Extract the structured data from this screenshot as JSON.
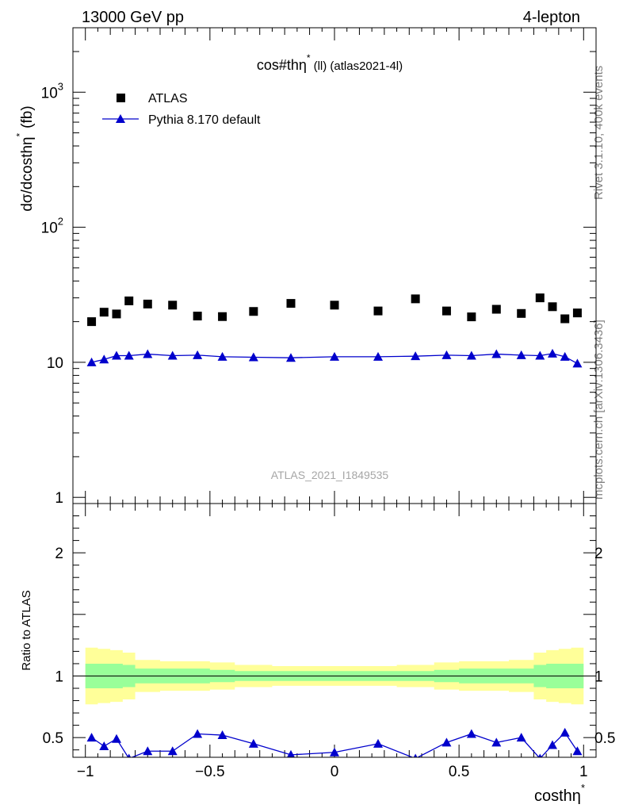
{
  "header": {
    "left": "13000 GeV pp",
    "right": "4-lepton"
  },
  "side_labels": {
    "rivet": "Rivet 3.1.10,  400k events",
    "mcplots": "mcplots.cern.ch [arXiv:1306.3436]"
  },
  "watermark": "ATLAS_2021_I1849535",
  "colors": {
    "data": "#000000",
    "mc": "#0000cc",
    "band_outer": "#ffff99",
    "band_inner": "#99ff99"
  },
  "chart_data": [
    {
      "type": "scatter",
      "title": "cos#thη* (ll) (atlas2021-4l)",
      "title_main": "cos#thη",
      "title_sup": "*",
      "title_suffix": "(ll) (atlas2021-4l)",
      "ylabel": "dσ/dcosthη* (fb)",
      "ylabel_main": "dσ/dcosthη",
      "ylabel_sup": "*",
      "ylabel_suffix": "(fb)",
      "yscale": "log",
      "ylim": [
        0.9,
        3000
      ],
      "xlim": [
        -1.05,
        1.05
      ],
      "y_ticks": [
        {
          "v": 1,
          "label": "1"
        },
        {
          "v": 10,
          "label": "10"
        },
        {
          "v": 100,
          "label": "10",
          "sup": "2"
        },
        {
          "v": 1000,
          "label": "10",
          "sup": "3"
        }
      ],
      "legend_position": "top-left",
      "legend": [
        {
          "name": "ATLAS",
          "marker": "square"
        },
        {
          "name": "Pythia 8.170 default",
          "marker": "triangle-line"
        }
      ],
      "series": [
        {
          "name": "ATLAS",
          "x": [
            -0.975,
            -0.925,
            -0.875,
            -0.825,
            -0.75,
            -0.65,
            -0.55,
            -0.45,
            -0.325,
            -0.175,
            0.0,
            0.175,
            0.325,
            0.45,
            0.55,
            0.65,
            0.75,
            0.825,
            0.875,
            0.925,
            0.975
          ],
          "y": [
            20.0,
            23.5,
            22.8,
            28.5,
            27.0,
            26.5,
            22.0,
            21.8,
            23.8,
            27.3,
            26.5,
            24.0,
            29.5,
            24.0,
            21.7,
            24.7,
            23.0,
            30.0,
            25.8,
            21.0,
            23.2
          ]
        },
        {
          "name": "Pythia 8.170 default",
          "x": [
            -0.975,
            -0.925,
            -0.875,
            -0.825,
            -0.75,
            -0.65,
            -0.55,
            -0.45,
            -0.325,
            -0.175,
            0.0,
            0.175,
            0.325,
            0.45,
            0.55,
            0.65,
            0.75,
            0.825,
            0.875,
            0.925,
            0.975
          ],
          "y": [
            10.0,
            10.5,
            11.2,
            11.2,
            11.5,
            11.2,
            11.3,
            11.0,
            10.9,
            10.8,
            11.0,
            11.0,
            11.1,
            11.3,
            11.2,
            11.5,
            11.3,
            11.2,
            11.6,
            11.0,
            9.8
          ]
        }
      ]
    },
    {
      "type": "line",
      "ylabel": "Ratio to ATLAS",
      "xlabel": "costhη*",
      "xlabel_main": "costhη",
      "xlabel_sup": "*",
      "xlim": [
        -1.05,
        1.05
      ],
      "ylim": [
        0.34,
        2.4
      ],
      "x_ticks": [
        {
          "v": -1,
          "label": "−1"
        },
        {
          "v": -0.5,
          "label": "−0.5"
        },
        {
          "v": 0,
          "label": "0"
        },
        {
          "v": 0.5,
          "label": "0.5"
        },
        {
          "v": 1,
          "label": "1"
        }
      ],
      "y_ticks": [
        {
          "v": 0.5,
          "label": "0.5"
        },
        {
          "v": 1,
          "label": "1"
        },
        {
          "v": 2,
          "label": "2"
        }
      ],
      "bins": [
        -1.0,
        -0.95,
        -0.9,
        -0.85,
        -0.8,
        -0.7,
        -0.6,
        -0.5,
        -0.4,
        -0.25,
        -0.1,
        0.1,
        0.25,
        0.4,
        0.5,
        0.6,
        0.7,
        0.8,
        0.85,
        0.9,
        0.95,
        1.0
      ],
      "band_outer": [
        0.23,
        0.22,
        0.21,
        0.19,
        0.13,
        0.12,
        0.12,
        0.11,
        0.09,
        0.08,
        0.08,
        0.08,
        0.09,
        0.11,
        0.12,
        0.12,
        0.13,
        0.19,
        0.21,
        0.22,
        0.23
      ],
      "band_inner": [
        0.1,
        0.1,
        0.1,
        0.09,
        0.06,
        0.06,
        0.06,
        0.05,
        0.04,
        0.04,
        0.04,
        0.04,
        0.04,
        0.05,
        0.06,
        0.06,
        0.06,
        0.09,
        0.1,
        0.1,
        0.1
      ],
      "reference_line": 1,
      "series": [
        {
          "name": "Pythia 8.170 default",
          "x": [
            -0.975,
            -0.925,
            -0.875,
            -0.825,
            -0.75,
            -0.65,
            -0.55,
            -0.45,
            -0.325,
            -0.175,
            0.0,
            0.175,
            0.325,
            0.45,
            0.55,
            0.65,
            0.75,
            0.825,
            0.875,
            0.925,
            0.975
          ],
          "y": [
            0.5,
            0.43,
            0.49,
            0.33,
            0.39,
            0.39,
            0.53,
            0.52,
            0.45,
            0.36,
            0.38,
            0.45,
            0.33,
            0.46,
            0.53,
            0.46,
            0.5,
            0.33,
            0.44,
            0.54,
            0.39
          ]
        }
      ]
    }
  ]
}
